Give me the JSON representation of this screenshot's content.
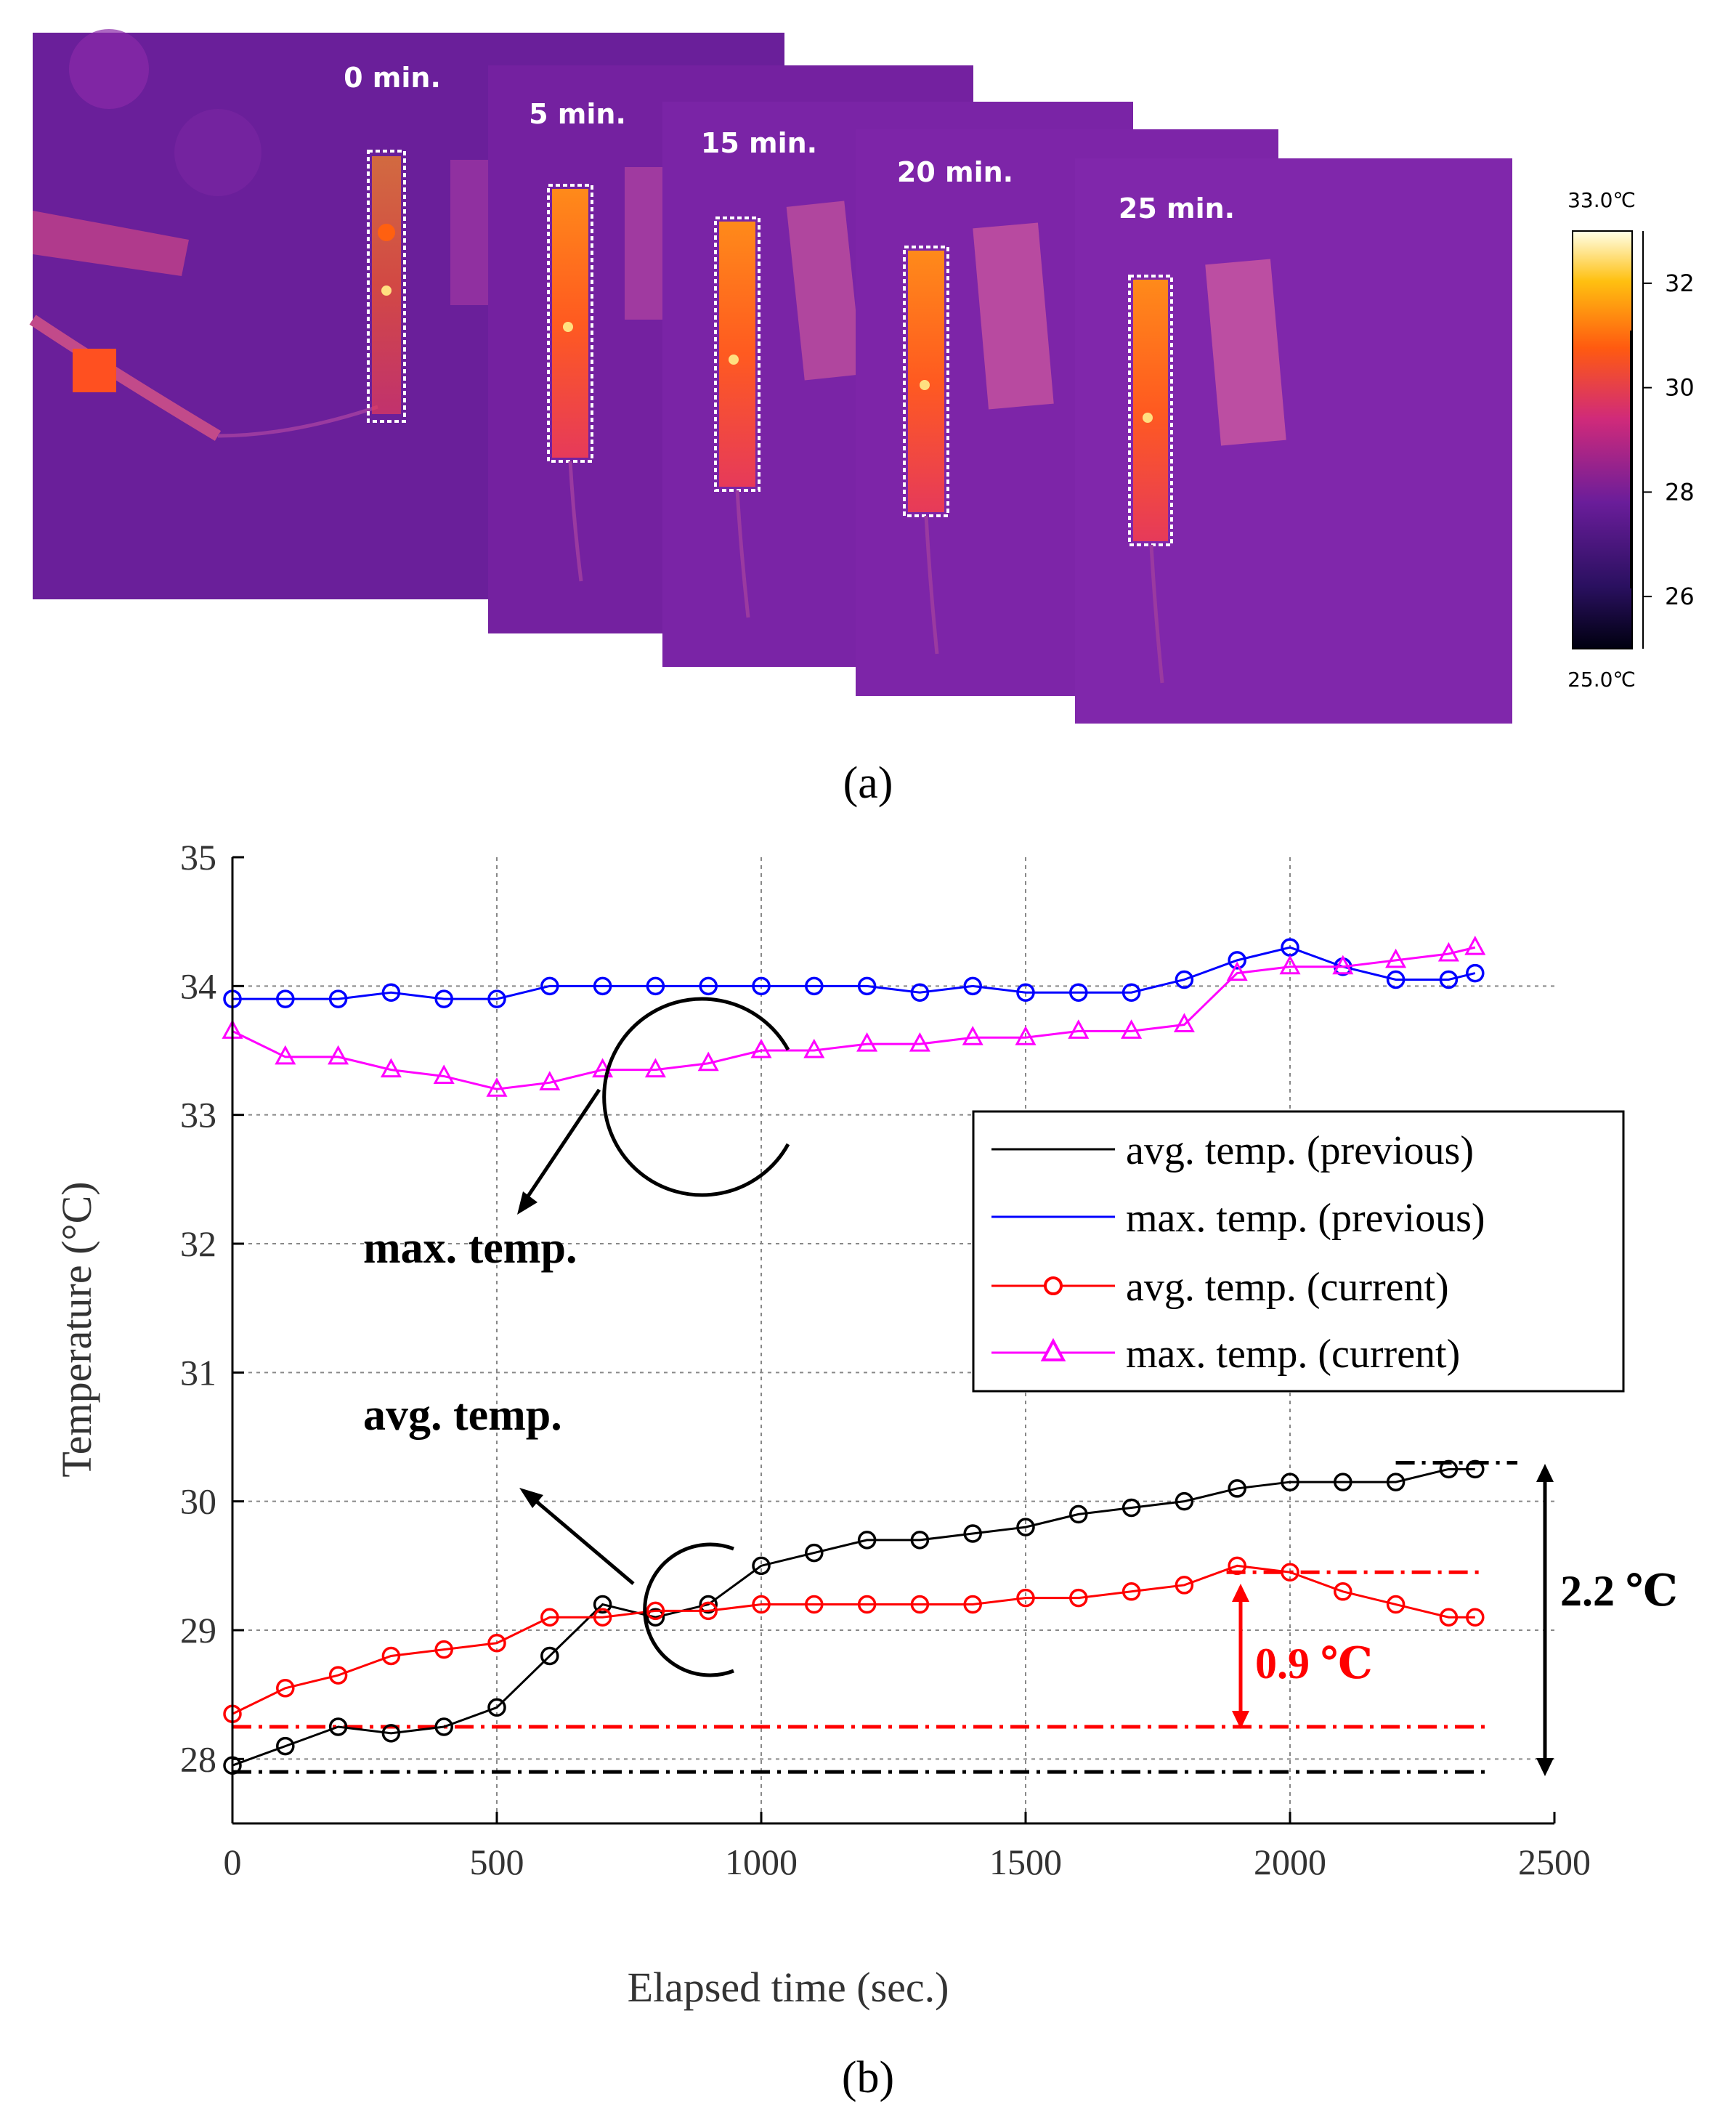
{
  "panel_a": {
    "caption": "(a)",
    "colorbar": {
      "max_label": "33.0℃",
      "min_label": "25.0℃",
      "min": 25.0,
      "max": 33.0,
      "ticks": [
        {
          "value": 32,
          "label": "32"
        },
        {
          "value": 30,
          "label": "30"
        },
        {
          "value": 28,
          "label": "28"
        },
        {
          "value": 26,
          "label": "26"
        }
      ]
    },
    "frames": [
      {
        "label": "0 min.",
        "bg": "#6a1f9a"
      },
      {
        "label": "5 min.",
        "bg": "#7421a0"
      },
      {
        "label": "15 min.",
        "bg": "#7a24a6"
      },
      {
        "label": "20 min.",
        "bg": "#7d25a8"
      },
      {
        "label": "25 min.",
        "bg": "#8027ab"
      }
    ],
    "colors": {
      "roi_border": "#ffffff",
      "label_text": "#ffffff"
    }
  },
  "panel_b": {
    "caption": "(b)",
    "annotations": {
      "max_label": "max. temp.",
      "avg_label": "avg. temp.",
      "diff_current": "0.9 ℃",
      "diff_previous": "2.2 ℃"
    }
  },
  "chart_data": {
    "type": "line",
    "xlabel": "Elapsed time (sec.)",
    "ylabel": "Temperature (°C)",
    "xlim": [
      0,
      2500
    ],
    "ylim": [
      27.5,
      35
    ],
    "xticks": [
      0,
      500,
      1000,
      1500,
      2000,
      2500
    ],
    "yticks": [
      28,
      29,
      30,
      31,
      32,
      33,
      34,
      35
    ],
    "grid": true,
    "legend_position": "right",
    "x": [
      0,
      100,
      200,
      300,
      400,
      500,
      600,
      700,
      800,
      900,
      1000,
      1100,
      1200,
      1300,
      1400,
      1500,
      1600,
      1700,
      1800,
      1900,
      2000,
      2100,
      2200,
      2300,
      2350
    ],
    "series": [
      {
        "name": "avg. temp.  (previous)",
        "color": "#000000",
        "marker": "circle",
        "values": [
          27.95,
          28.1,
          28.25,
          28.2,
          28.25,
          28.4,
          28.8,
          29.2,
          29.1,
          29.2,
          29.5,
          29.6,
          29.7,
          29.7,
          29.75,
          29.8,
          29.9,
          29.95,
          30.0,
          30.1,
          30.15,
          30.15,
          30.15,
          30.25,
          30.25
        ]
      },
      {
        "name": "max. temp. (previous)",
        "color": "#0000ff",
        "marker": "circle",
        "values": [
          33.9,
          33.9,
          33.9,
          33.95,
          33.9,
          33.9,
          34.0,
          34.0,
          34.0,
          34.0,
          34.0,
          34.0,
          34.0,
          33.95,
          34.0,
          33.95,
          33.95,
          33.95,
          34.05,
          34.2,
          34.3,
          34.15,
          34.05,
          34.05,
          34.1
        ]
      },
      {
        "name": "avg. temp.  (current)",
        "color": "#ff0000",
        "marker": "circle",
        "values": [
          28.35,
          28.55,
          28.65,
          28.8,
          28.85,
          28.9,
          29.1,
          29.1,
          29.15,
          29.15,
          29.2,
          29.2,
          29.2,
          29.2,
          29.2,
          29.25,
          29.25,
          29.3,
          29.35,
          29.5,
          29.45,
          29.3,
          29.2,
          29.1,
          29.1
        ]
      },
      {
        "name": "max. temp. (current)",
        "color": "#ff00ff",
        "marker": "triangle",
        "values": [
          33.65,
          33.45,
          33.45,
          33.35,
          33.3,
          33.2,
          33.25,
          33.35,
          33.35,
          33.4,
          33.5,
          33.5,
          33.55,
          33.55,
          33.6,
          33.6,
          33.65,
          33.65,
          33.7,
          34.1,
          34.15,
          34.15,
          34.2,
          34.25,
          34.3
        ]
      }
    ],
    "reference_lines": [
      {
        "y": 28.25,
        "color": "#ff0000",
        "style": "dash-dot"
      },
      {
        "y": 27.9,
        "color": "#000000",
        "style": "dash-dot"
      },
      {
        "y": 29.45,
        "color": "#ff0000",
        "style": "dash-dot"
      },
      {
        "y": 30.3,
        "color": "#000000",
        "style": "dash-dot"
      }
    ]
  }
}
